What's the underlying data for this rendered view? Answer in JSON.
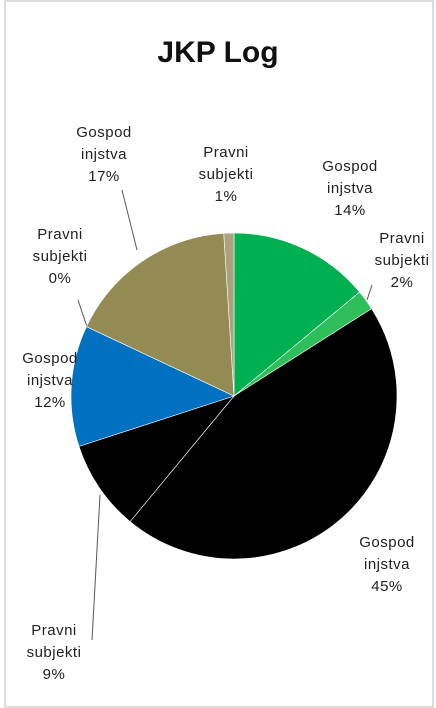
{
  "chart_data": {
    "type": "pie",
    "title": "JKP Log",
    "categories": [
      "Gospod injstva",
      "Pravni subjekti",
      "Gospod injstva",
      "Pravni subjekti",
      "Gospod injstva",
      "Pravni subjekti",
      "Gospod injstva",
      "Pravni subjekti"
    ],
    "values": [
      14,
      2,
      45,
      9,
      12,
      0,
      17,
      1
    ],
    "value_labels": [
      "14%",
      "2%",
      "45%",
      "9%",
      "12%",
      "0%",
      "17%",
      "1%"
    ],
    "colors": [
      "#00b050",
      "#2fbf5a",
      "#000000",
      "#000000",
      "#0070c0",
      "#7f7f7f",
      "#948a54",
      "#aaa27c"
    ]
  }
}
